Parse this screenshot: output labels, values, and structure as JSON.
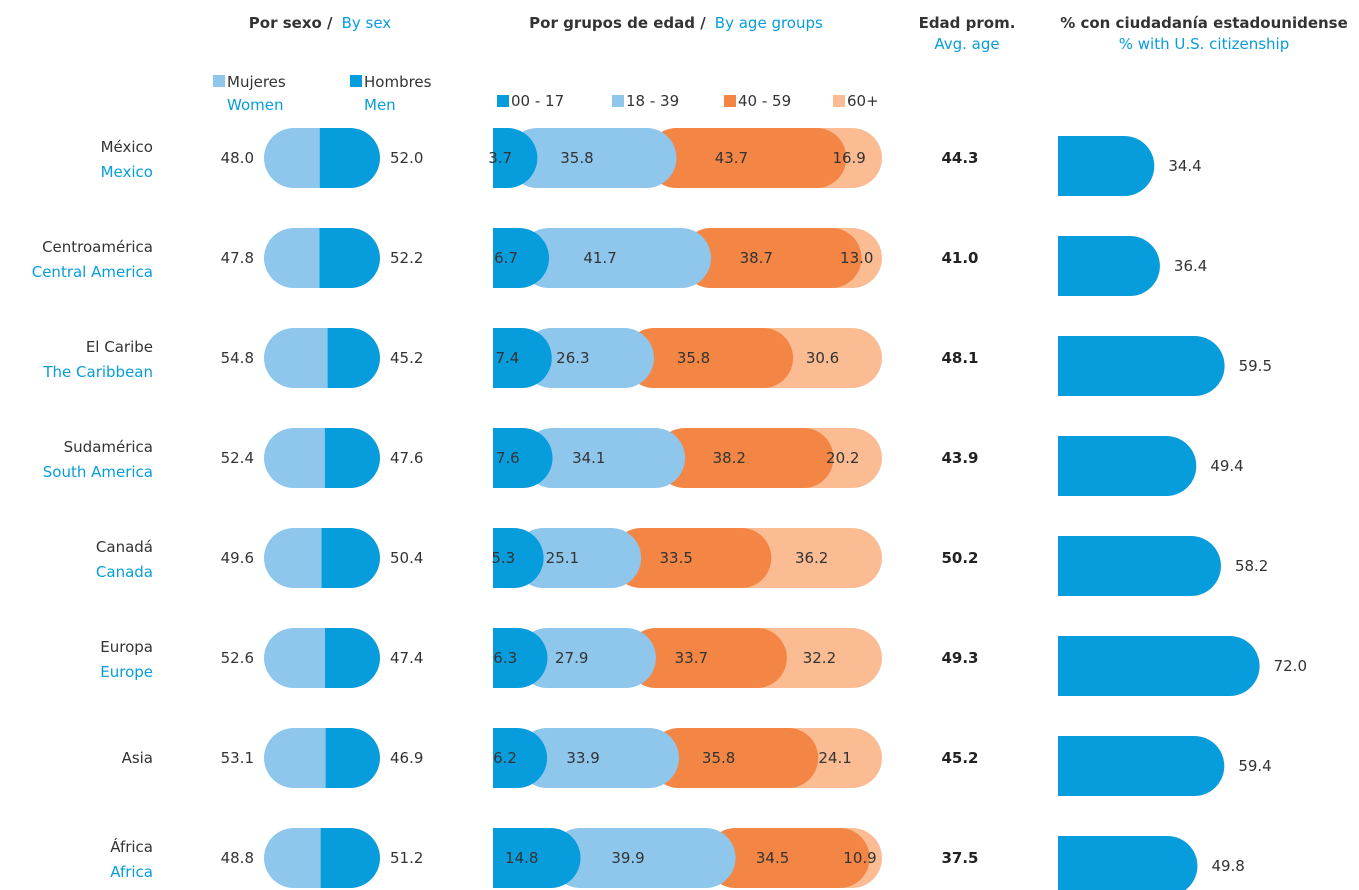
{
  "headers": {
    "sex_es": "Por sexo /",
    "sex_en": "By sex",
    "age_es": "Por grupos de edad /",
    "age_en": "By age groups",
    "avg_es": "Edad prom.",
    "avg_en": "Avg. age",
    "cit_es": "% con ciudadanía estadounidense",
    "cit_en": "% with U.S. citizenship"
  },
  "legend": {
    "women_es": "Mujeres",
    "women_en": "Women",
    "men_es": "Hombres",
    "men_en": "Men",
    "age_groups": [
      "00 - 17",
      "18 - 39",
      "40 - 59",
      "60+"
    ]
  },
  "colors": {
    "women": "#8ec6ec",
    "men": "#079ddd",
    "age": [
      "#079ddd",
      "#8ec6ec",
      "#f38645",
      "#fbbc93"
    ],
    "citizenship": "#079ddd",
    "english_text": "#079ddd"
  },
  "chart_data": {
    "type": "bar",
    "categories": [
      "México",
      "Centroamérica",
      "El Caribe",
      "Sudamérica",
      "Canadá",
      "Europa",
      "Asia",
      "África"
    ],
    "categories_en": [
      "Mexico",
      "Central America",
      "The Caribbean",
      "South America",
      "Canada",
      "Europe",
      "",
      "Africa"
    ],
    "sex": {
      "women": [
        48.0,
        47.8,
        54.8,
        52.4,
        49.6,
        52.6,
        53.1,
        48.8
      ],
      "men": [
        52.0,
        52.2,
        45.2,
        47.6,
        50.4,
        47.4,
        46.9,
        51.2
      ]
    },
    "age_groups": {
      "00 - 17": [
        3.7,
        6.7,
        7.4,
        7.6,
        5.3,
        6.3,
        6.2,
        14.8
      ],
      "18 - 39": [
        35.8,
        41.7,
        26.3,
        34.1,
        25.1,
        27.9,
        33.9,
        39.9
      ],
      "40 - 59": [
        43.7,
        38.7,
        35.8,
        38.2,
        33.5,
        33.7,
        35.8,
        34.5
      ],
      "60+": [
        16.9,
        13.0,
        30.6,
        20.2,
        36.2,
        32.2,
        24.1,
        10.9
      ]
    },
    "avg_age": [
      44.3,
      41.0,
      48.1,
      43.9,
      50.2,
      49.3,
      45.2,
      37.5
    ],
    "citizenship_pct": [
      34.4,
      36.4,
      59.5,
      49.4,
      58.2,
      72.0,
      59.4,
      49.8
    ],
    "citizenship_xlim": [
      0,
      100
    ]
  }
}
